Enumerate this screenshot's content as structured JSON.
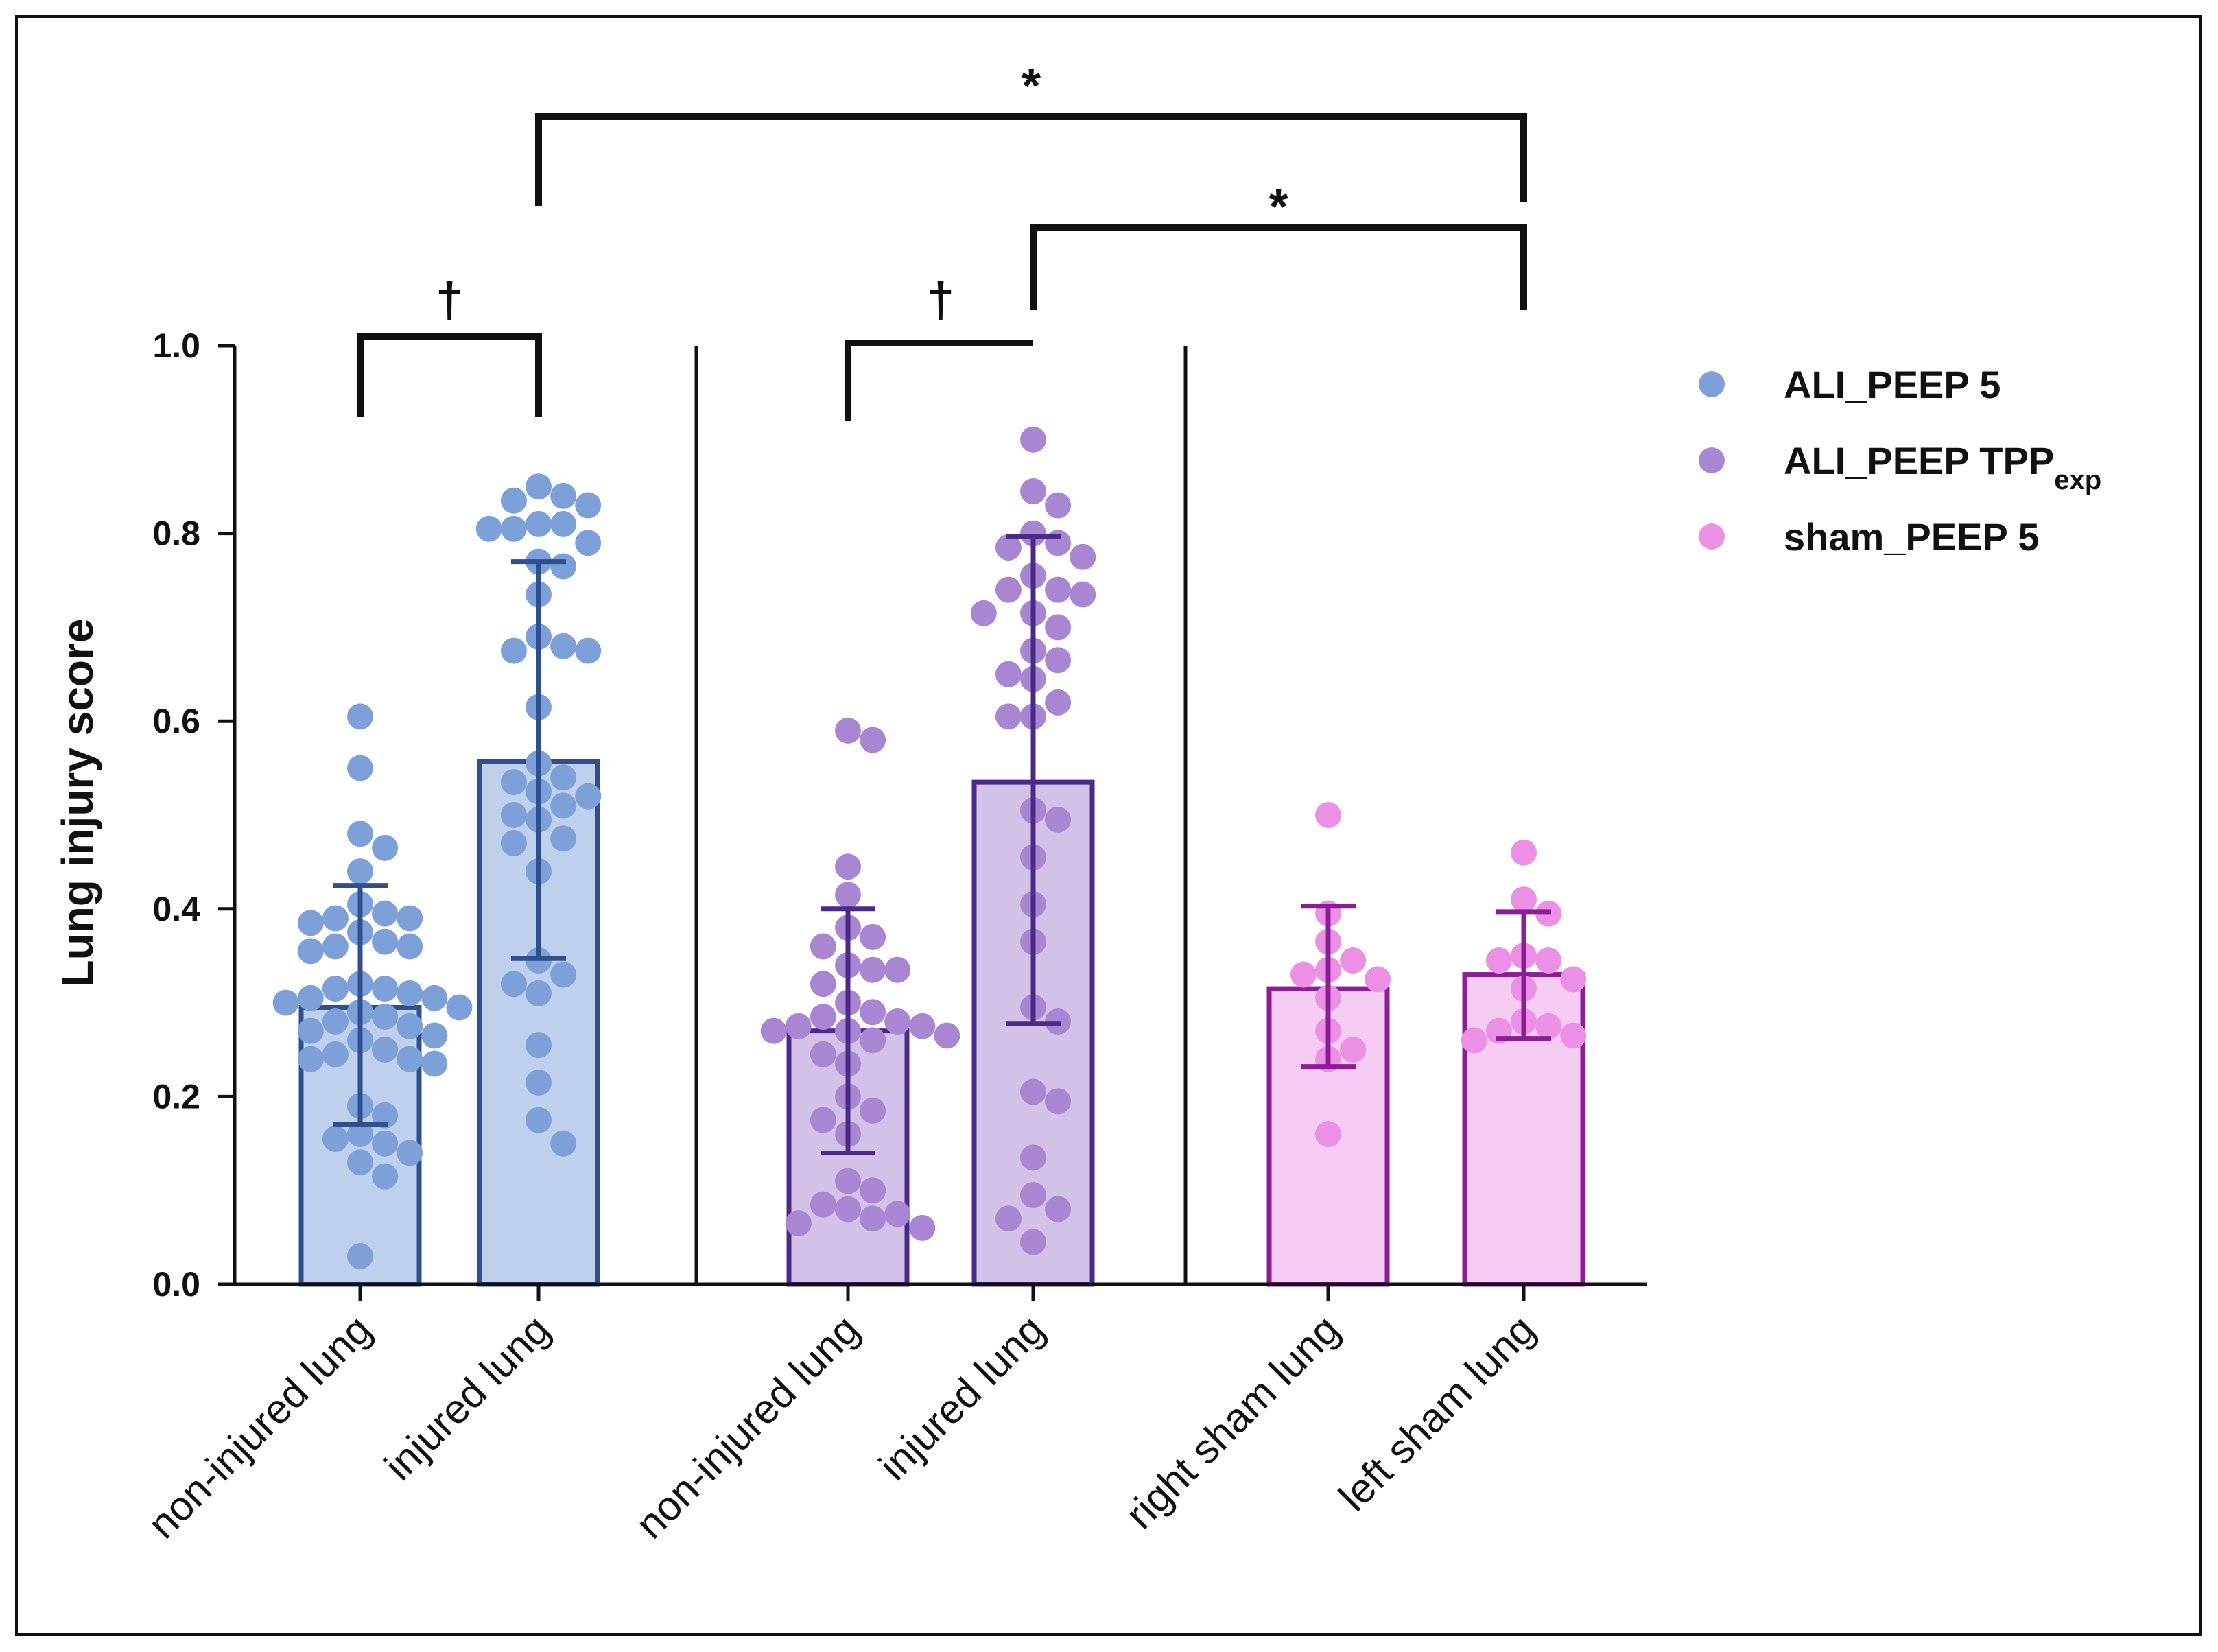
{
  "chart_data": {
    "type": "bar",
    "ylabel": "Lung injury score",
    "ylim": [
      0,
      1.0
    ],
    "yticks": [
      "0.0",
      "0.2",
      "0.4",
      "0.6",
      "0.8",
      "1.0"
    ],
    "categories": [
      "non-injured lung",
      "injured lung",
      "non-injured lung",
      "injured lung",
      "right sham lung",
      "left sham lung"
    ],
    "legend": [
      {
        "name": "ALI_PEEP 5",
        "sub": "",
        "color": "#7ea0d8"
      },
      {
        "name": "ALI_PEEP TPP",
        "sub": "exp",
        "color": "#a886d2"
      },
      {
        "name": "sham_PEEP 5",
        "sub": "",
        "color": "#ec90e6"
      }
    ],
    "legend_position": "right",
    "groups": [
      {
        "category_index": 0,
        "series": 0,
        "mean": 0.295,
        "sd_low": 0.17,
        "sd_high": 0.425,
        "bar_fill": "#bfd0ec",
        "edge": "#2f4f8f",
        "dot": "#7ea0d8",
        "points": [
          0.605,
          0.55,
          0.48,
          0.465,
          0.44,
          0.405,
          0.395,
          0.39,
          0.39,
          0.385,
          0.375,
          0.365,
          0.36,
          0.36,
          0.355,
          0.32,
          0.315,
          0.315,
          0.31,
          0.305,
          0.305,
          0.3,
          0.295,
          0.29,
          0.285,
          0.28,
          0.275,
          0.27,
          0.265,
          0.26,
          0.25,
          0.245,
          0.24,
          0.24,
          0.235,
          0.19,
          0.18,
          0.16,
          0.155,
          0.15,
          0.14,
          0.13,
          0.115,
          0.03
        ]
      },
      {
        "category_index": 1,
        "series": 0,
        "mean": 0.557,
        "sd_low": 0.347,
        "sd_high": 0.77,
        "bar_fill": "#bfd0ec",
        "edge": "#2f4f8f",
        "dot": "#7ea0d8",
        "points": [
          0.85,
          0.84,
          0.835,
          0.83,
          0.81,
          0.81,
          0.805,
          0.805,
          0.79,
          0.77,
          0.765,
          0.735,
          0.69,
          0.68,
          0.675,
          0.675,
          0.615,
          0.555,
          0.54,
          0.535,
          0.525,
          0.52,
          0.51,
          0.5,
          0.495,
          0.475,
          0.47,
          0.44,
          0.345,
          0.33,
          0.32,
          0.31,
          0.255,
          0.215,
          0.175,
          0.15
        ]
      },
      {
        "category_index": 2,
        "series": 1,
        "mean": 0.27,
        "sd_low": 0.14,
        "sd_high": 0.4,
        "bar_fill": "#d2c2e8",
        "edge": "#4b2a8a",
        "dot": "#a886d2",
        "points": [
          0.59,
          0.58,
          0.445,
          0.415,
          0.38,
          0.37,
          0.36,
          0.34,
          0.335,
          0.335,
          0.32,
          0.3,
          0.29,
          0.285,
          0.28,
          0.275,
          0.275,
          0.27,
          0.27,
          0.265,
          0.26,
          0.245,
          0.235,
          0.2,
          0.185,
          0.175,
          0.16,
          0.11,
          0.1,
          0.085,
          0.08,
          0.075,
          0.07,
          0.065,
          0.06
        ]
      },
      {
        "category_index": 3,
        "series": 1,
        "mean": 0.535,
        "sd_low": 0.278,
        "sd_high": 0.797,
        "bar_fill": "#d2c2e8",
        "edge": "#4b2a8a",
        "dot": "#a886d2",
        "points": [
          0.9,
          0.845,
          0.83,
          0.8,
          0.79,
          0.785,
          0.775,
          0.755,
          0.74,
          0.74,
          0.735,
          0.715,
          0.715,
          0.7,
          0.675,
          0.665,
          0.65,
          0.645,
          0.62,
          0.605,
          0.605,
          0.505,
          0.495,
          0.455,
          0.405,
          0.365,
          0.295,
          0.28,
          0.205,
          0.195,
          0.135,
          0.095,
          0.08,
          0.07,
          0.045
        ]
      },
      {
        "category_index": 4,
        "series": 2,
        "mean": 0.315,
        "sd_low": 0.232,
        "sd_high": 0.403,
        "bar_fill": "#f5cdf2",
        "edge": "#8b1e96",
        "dot": "#ec90e6",
        "points": [
          0.5,
          0.395,
          0.365,
          0.345,
          0.335,
          0.33,
          0.325,
          0.305,
          0.27,
          0.25,
          0.24,
          0.16
        ]
      },
      {
        "category_index": 5,
        "series": 2,
        "mean": 0.33,
        "sd_low": 0.262,
        "sd_high": 0.397,
        "bar_fill": "#f5cdf2",
        "edge": "#8b1e96",
        "dot": "#ec90e6",
        "points": [
          0.46,
          0.41,
          0.395,
          0.35,
          0.345,
          0.345,
          0.325,
          0.315,
          0.28,
          0.275,
          0.27,
          0.265,
          0.26
        ]
      }
    ],
    "annotations": [
      {
        "label": "†",
        "from": 0,
        "to": 1
      },
      {
        "label": "†",
        "from": 2,
        "to": 3
      },
      {
        "label": "*",
        "from": 1,
        "to": 5
      },
      {
        "label": "*",
        "from": 3,
        "to": 5
      }
    ]
  }
}
